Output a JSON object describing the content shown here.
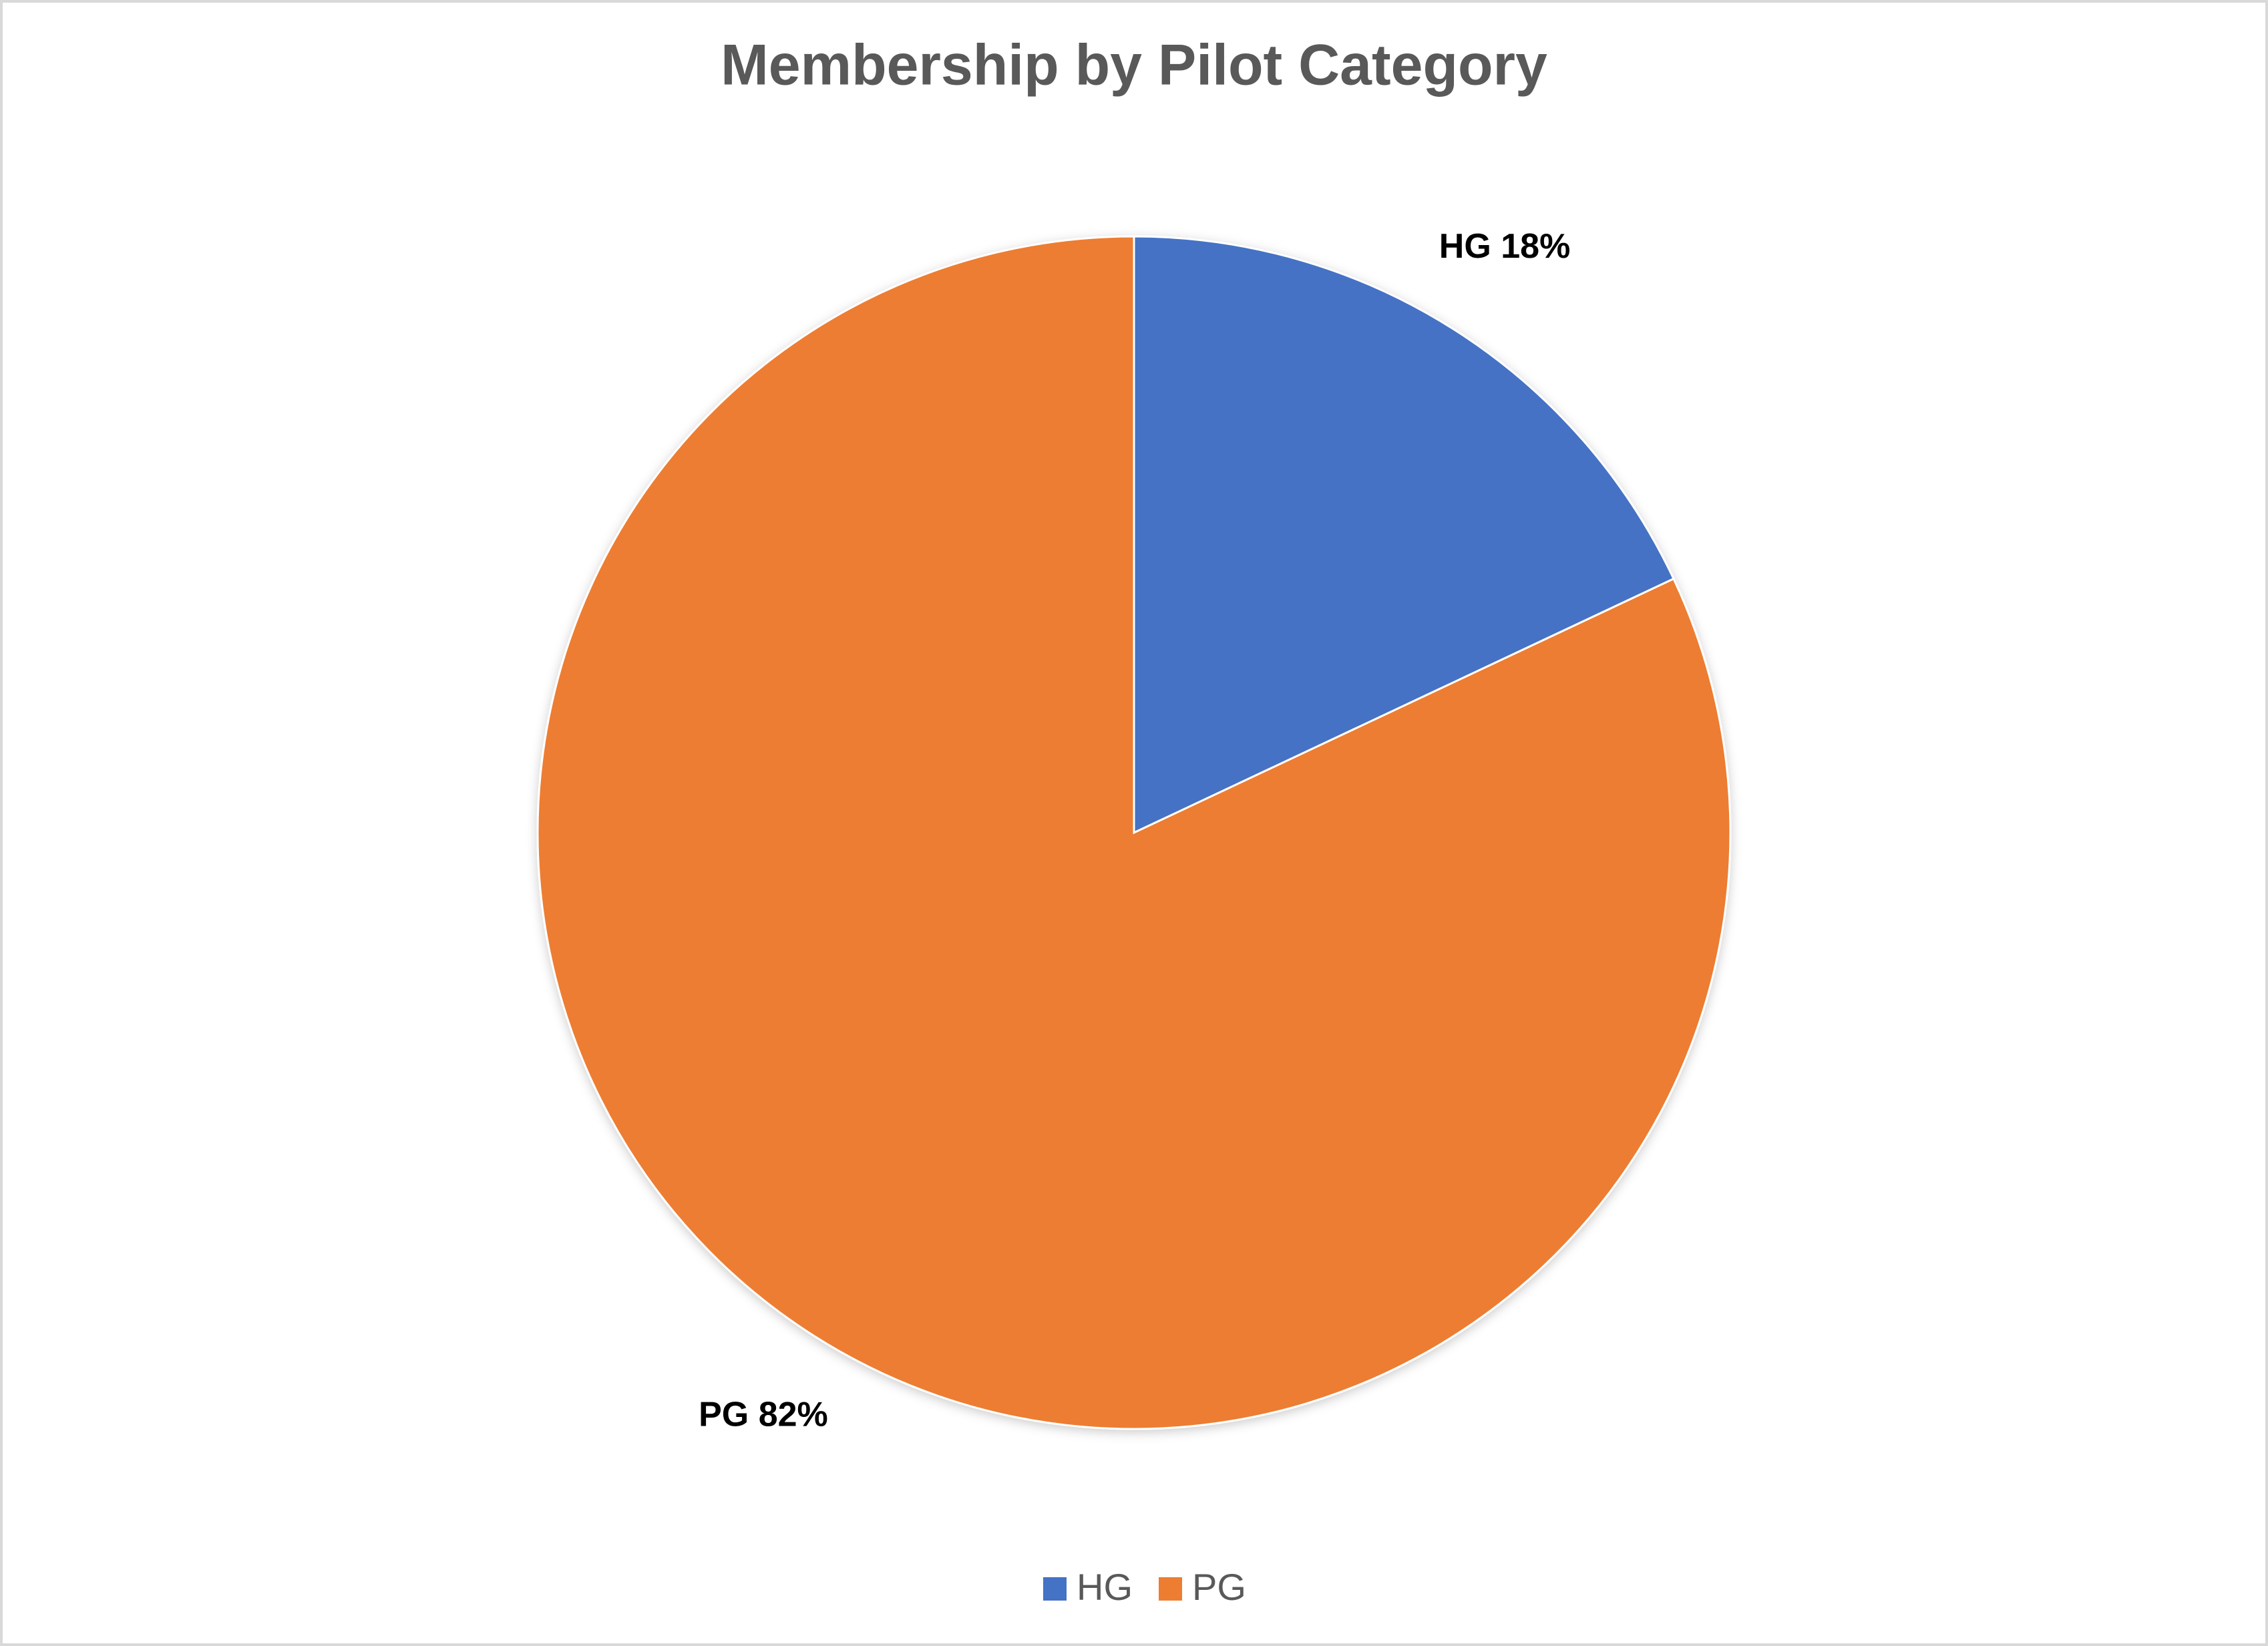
{
  "chart_data": {
    "type": "pie",
    "title": "Membership by Pilot Category",
    "categories": [
      "HG",
      "PG"
    ],
    "values": [
      18,
      82
    ],
    "value_labels": [
      "HG 18%",
      "PG 82%"
    ],
    "colors": [
      "#4472c4",
      "#ed7d31"
    ],
    "legend": "bottom"
  }
}
